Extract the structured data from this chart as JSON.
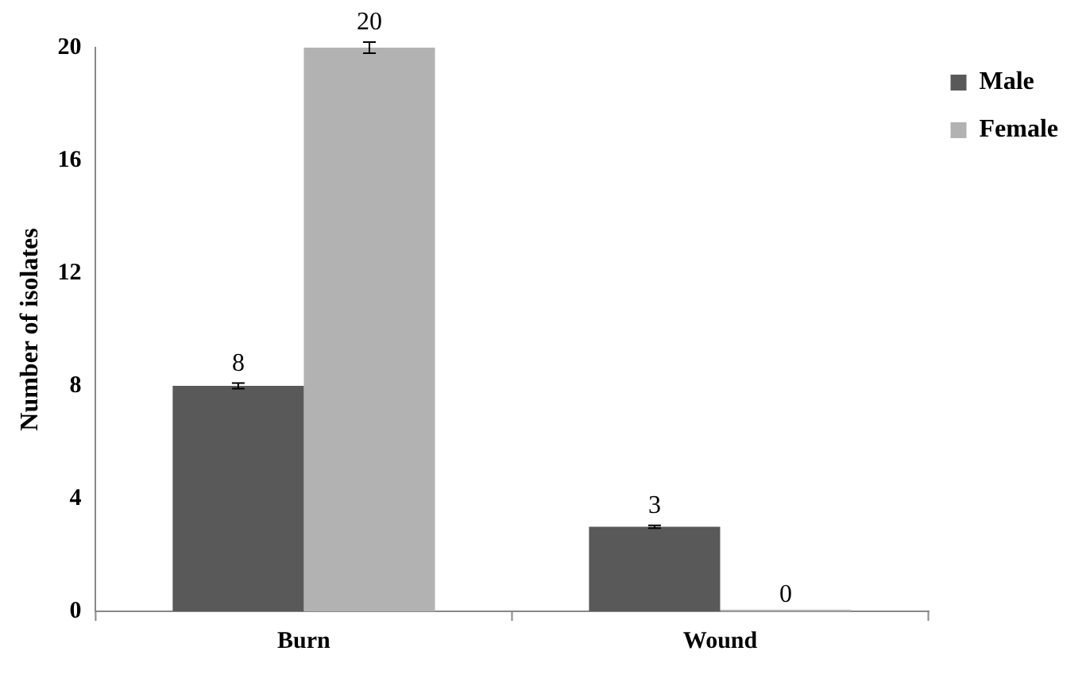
{
  "chart_data": {
    "type": "bar",
    "ylabel": "Number of isolates",
    "categories": [
      "Burn",
      "Wound"
    ],
    "series": [
      {
        "name": "Male",
        "color": "#595959",
        "values": [
          8,
          3
        ],
        "errors": [
          0.1,
          0.05
        ]
      },
      {
        "name": "Female",
        "color": "#b2b2b2",
        "values": [
          20,
          0
        ],
        "errors": [
          0.2,
          null
        ]
      }
    ],
    "ylim": [
      0,
      20
    ],
    "yticks": [
      0,
      4,
      8,
      12,
      16,
      20
    ],
    "data_labels": true,
    "legend": "top right",
    "grid": false
  }
}
